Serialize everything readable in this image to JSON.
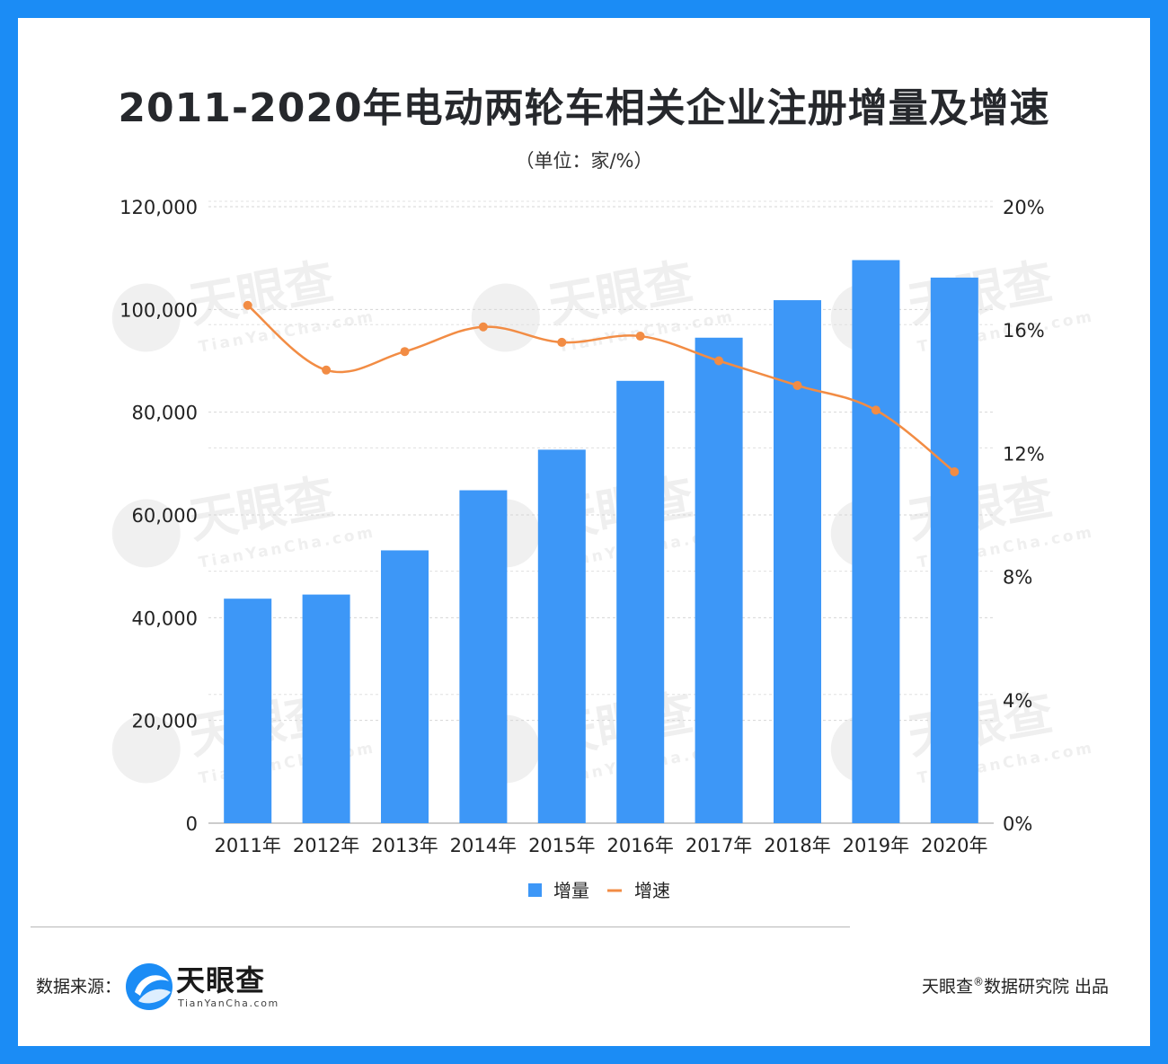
{
  "chart_data": {
    "type": "bar",
    "title": "2011-2020年电动两轮车相关企业注册增量及增速",
    "subtitle": "（单位：家/%）",
    "categories": [
      "2011年",
      "2012年",
      "2013年",
      "2014年",
      "2015年",
      "2016年",
      "2017年",
      "2018年",
      "2019年",
      "2020年"
    ],
    "series": [
      {
        "name": "增量",
        "type": "bar",
        "axis": "left",
        "color": "#3d97f7",
        "values": [
          43700,
          44500,
          53100,
          64800,
          72700,
          86100,
          94500,
          101800,
          109600,
          106200
        ]
      },
      {
        "name": "增速",
        "type": "line",
        "axis": "right",
        "color": "#f28c44",
        "values": [
          16.8,
          14.7,
          15.3,
          16.1,
          15.6,
          15.8,
          15.0,
          14.2,
          13.4,
          11.4
        ]
      }
    ],
    "left_axis": {
      "ylim": [
        0,
        120000
      ],
      "ticks": [
        "0",
        "20,000",
        "40,000",
        "60,000",
        "80,000",
        "100,000",
        "120,000"
      ]
    },
    "right_axis": {
      "ylim": [
        0,
        20
      ],
      "ticks": [
        "0%",
        "4%",
        "8%",
        "12%",
        "16%",
        "20%"
      ]
    },
    "legend": [
      {
        "label": "增量",
        "symbol": "square"
      },
      {
        "label": "增速",
        "symbol": "line"
      }
    ],
    "legend_position": "bottom-center",
    "grid": true
  },
  "watermark": {
    "brand": "天眼查",
    "url": "TianYanCha.com"
  },
  "footer": {
    "source_label": "数据来源：",
    "brand_name": "天眼查",
    "brand_url": "TianYanCha.com",
    "credit_prefix": "天眼查",
    "credit_mark": "®",
    "credit_suffix": "数据研究院 出品"
  }
}
